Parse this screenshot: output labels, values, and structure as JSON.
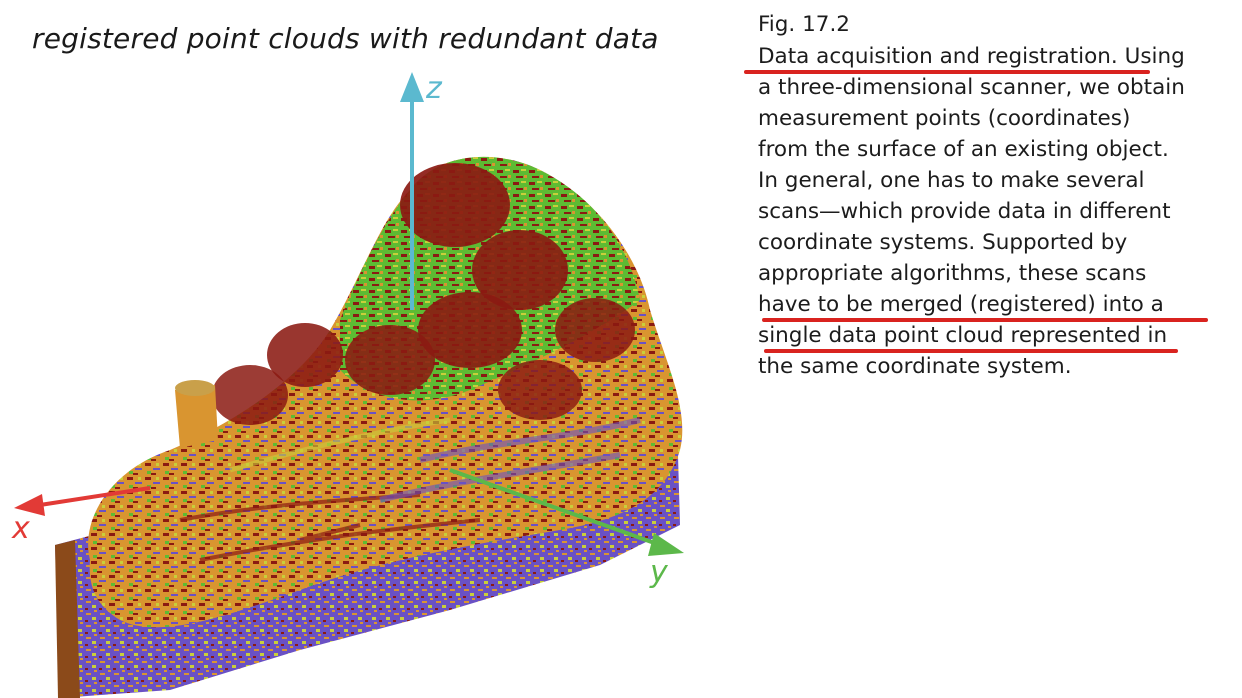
{
  "figure": {
    "title": "registered point clouds with redundant data",
    "axes": {
      "x_label": "x",
      "y_label": "y",
      "z_label": "z"
    },
    "colors": {
      "x_axis": "#e23a36",
      "y_axis": "#5cb84a",
      "z_axis": "#5bb9cf",
      "scan_red": "#8b1a12",
      "scan_orange": "#d99530",
      "scan_green": "#5dbb33",
      "scan_purple": "#6a51c4",
      "scan_yellow": "#c9cf3a"
    }
  },
  "caption": {
    "label": "Fig. 17.2",
    "lines": [
      "Data acquisition and registration. Using",
      "a three-dimensional scanner, we obtain",
      "measurement points (coordinates)",
      "from the surface of an existing object.",
      "In general, one has to make several",
      "scans—which provide data in different",
      "coordinate systems. Supported by",
      "appropriate algorithms, these scans",
      "have to be merged (registered) into a",
      "single data point cloud represented in",
      "the same coordinate system."
    ],
    "highlight_color": "#d9231f"
  }
}
